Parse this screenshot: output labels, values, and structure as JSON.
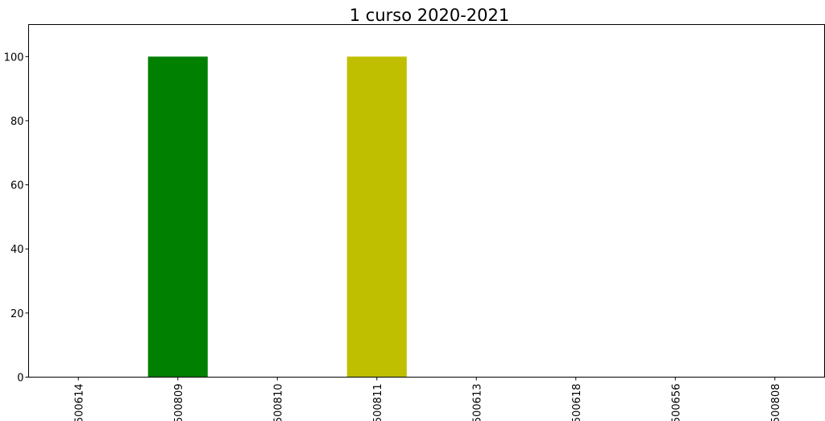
{
  "chart_data": {
    "type": "bar",
    "title": "1 curso 2020-2021",
    "xlabel": "",
    "ylabel": "",
    "categories": [
      "500614",
      "500809",
      "500810",
      "500811",
      "500613",
      "500618",
      "500656",
      "500808"
    ],
    "values": [
      0,
      100,
      0,
      100,
      0,
      0,
      0,
      0
    ],
    "colors": [
      "#0000ff",
      "#008000",
      "#ff0000",
      "#bfbf00",
      "#00bfbf",
      "#bf00bf",
      "#000000",
      "#ff7f0e"
    ],
    "ylim": [
      0,
      110
    ],
    "yticks": [
      0,
      20,
      40,
      60,
      80,
      100
    ],
    "grid": false,
    "legend": "none"
  }
}
